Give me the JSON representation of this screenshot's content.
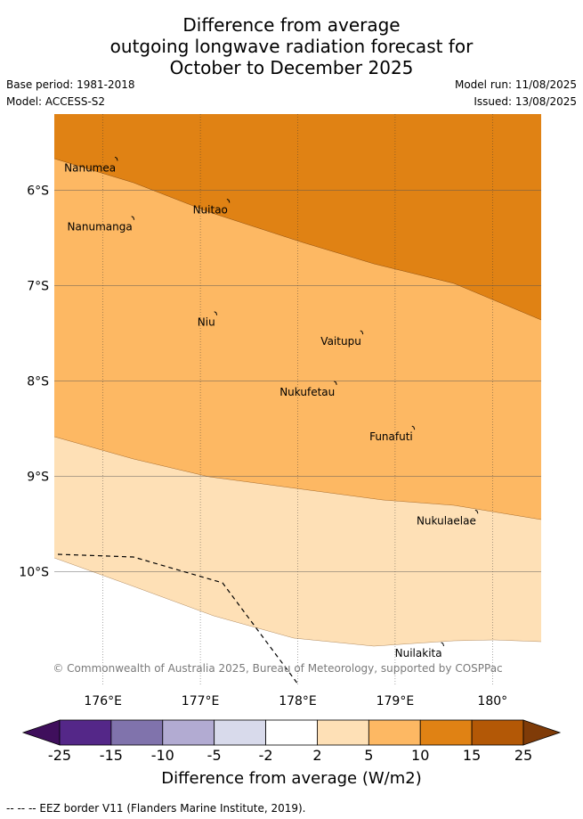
{
  "title": {
    "line1": "Difference from average",
    "line2": "outgoing longwave radiation forecast for",
    "line3": "October to December 2025"
  },
  "meta": {
    "base_period": "Base period: 1981-2018",
    "model": "Model: ACCESS-S2",
    "model_run": "Model run: 11/08/2025",
    "issued": "Issued: 13/08/2025"
  },
  "map": {
    "lon_range": [
      175.5,
      180.5
    ],
    "lat_range": [
      -5.2,
      -11.2
    ],
    "lon_ticks": [
      {
        "lon": 176,
        "label": "176°E"
      },
      {
        "lon": 177,
        "label": "177°E"
      },
      {
        "lon": 178,
        "label": "178°E"
      },
      {
        "lon": 179,
        "label": "179°E"
      },
      {
        "lon": 180,
        "label": "180°"
      }
    ],
    "lat_ticks": [
      {
        "lat": -6,
        "label": "6°S"
      },
      {
        "lat": -7,
        "label": "7°S"
      },
      {
        "lat": -8,
        "label": "8°S"
      },
      {
        "lat": -9,
        "label": "9°S"
      },
      {
        "lat": -10,
        "label": "10°S"
      }
    ],
    "copyright": "© Commonwealth of Australia 2025, Bureau of Meteorology, supported by COSPPac",
    "places": [
      {
        "name": "Nanumea",
        "lon": 176.15,
        "lat": -5.68
      },
      {
        "name": "Nanumanga",
        "lon": 176.32,
        "lat": -6.3
      },
      {
        "name": "Nuitao",
        "lon": 177.3,
        "lat": -6.12
      },
      {
        "name": "Niu",
        "lon": 177.17,
        "lat": -7.3
      },
      {
        "name": "Vaitupu",
        "lon": 178.67,
        "lat": -7.5
      },
      {
        "name": "Nukufetau",
        "lon": 178.4,
        "lat": -8.03
      },
      {
        "name": "Funafuti",
        "lon": 179.2,
        "lat": -8.5
      },
      {
        "name": "Nukulaelae",
        "lon": 179.85,
        "lat": -9.38
      },
      {
        "name": "Nuilakita",
        "lon": 179.5,
        "lat": -10.77
      }
    ],
    "zones": [
      {
        "range": "10 to 15",
        "color": "#e08214"
      },
      {
        "range": "5 to 10",
        "color": "#fdb863"
      },
      {
        "range": "2 to 5",
        "color": "#fee0b6"
      }
    ]
  },
  "colorbar": {
    "title": "Difference from average (W/m2)",
    "ticks": [
      "-25",
      "-15",
      "-10",
      "-5",
      "-2",
      "2",
      "5",
      "10",
      "15",
      "25"
    ],
    "colors": [
      "#3f0f5c",
      "#542788",
      "#8073ac",
      "#b2abd2",
      "#d8daeb",
      "#ffffff",
      "#fee0b6",
      "#fdb863",
      "#e08214",
      "#b35806",
      "#7f3b08"
    ]
  },
  "legend_note": "--  --  -- EEZ border V11 (Flanders Marine Institute, 2019)."
}
